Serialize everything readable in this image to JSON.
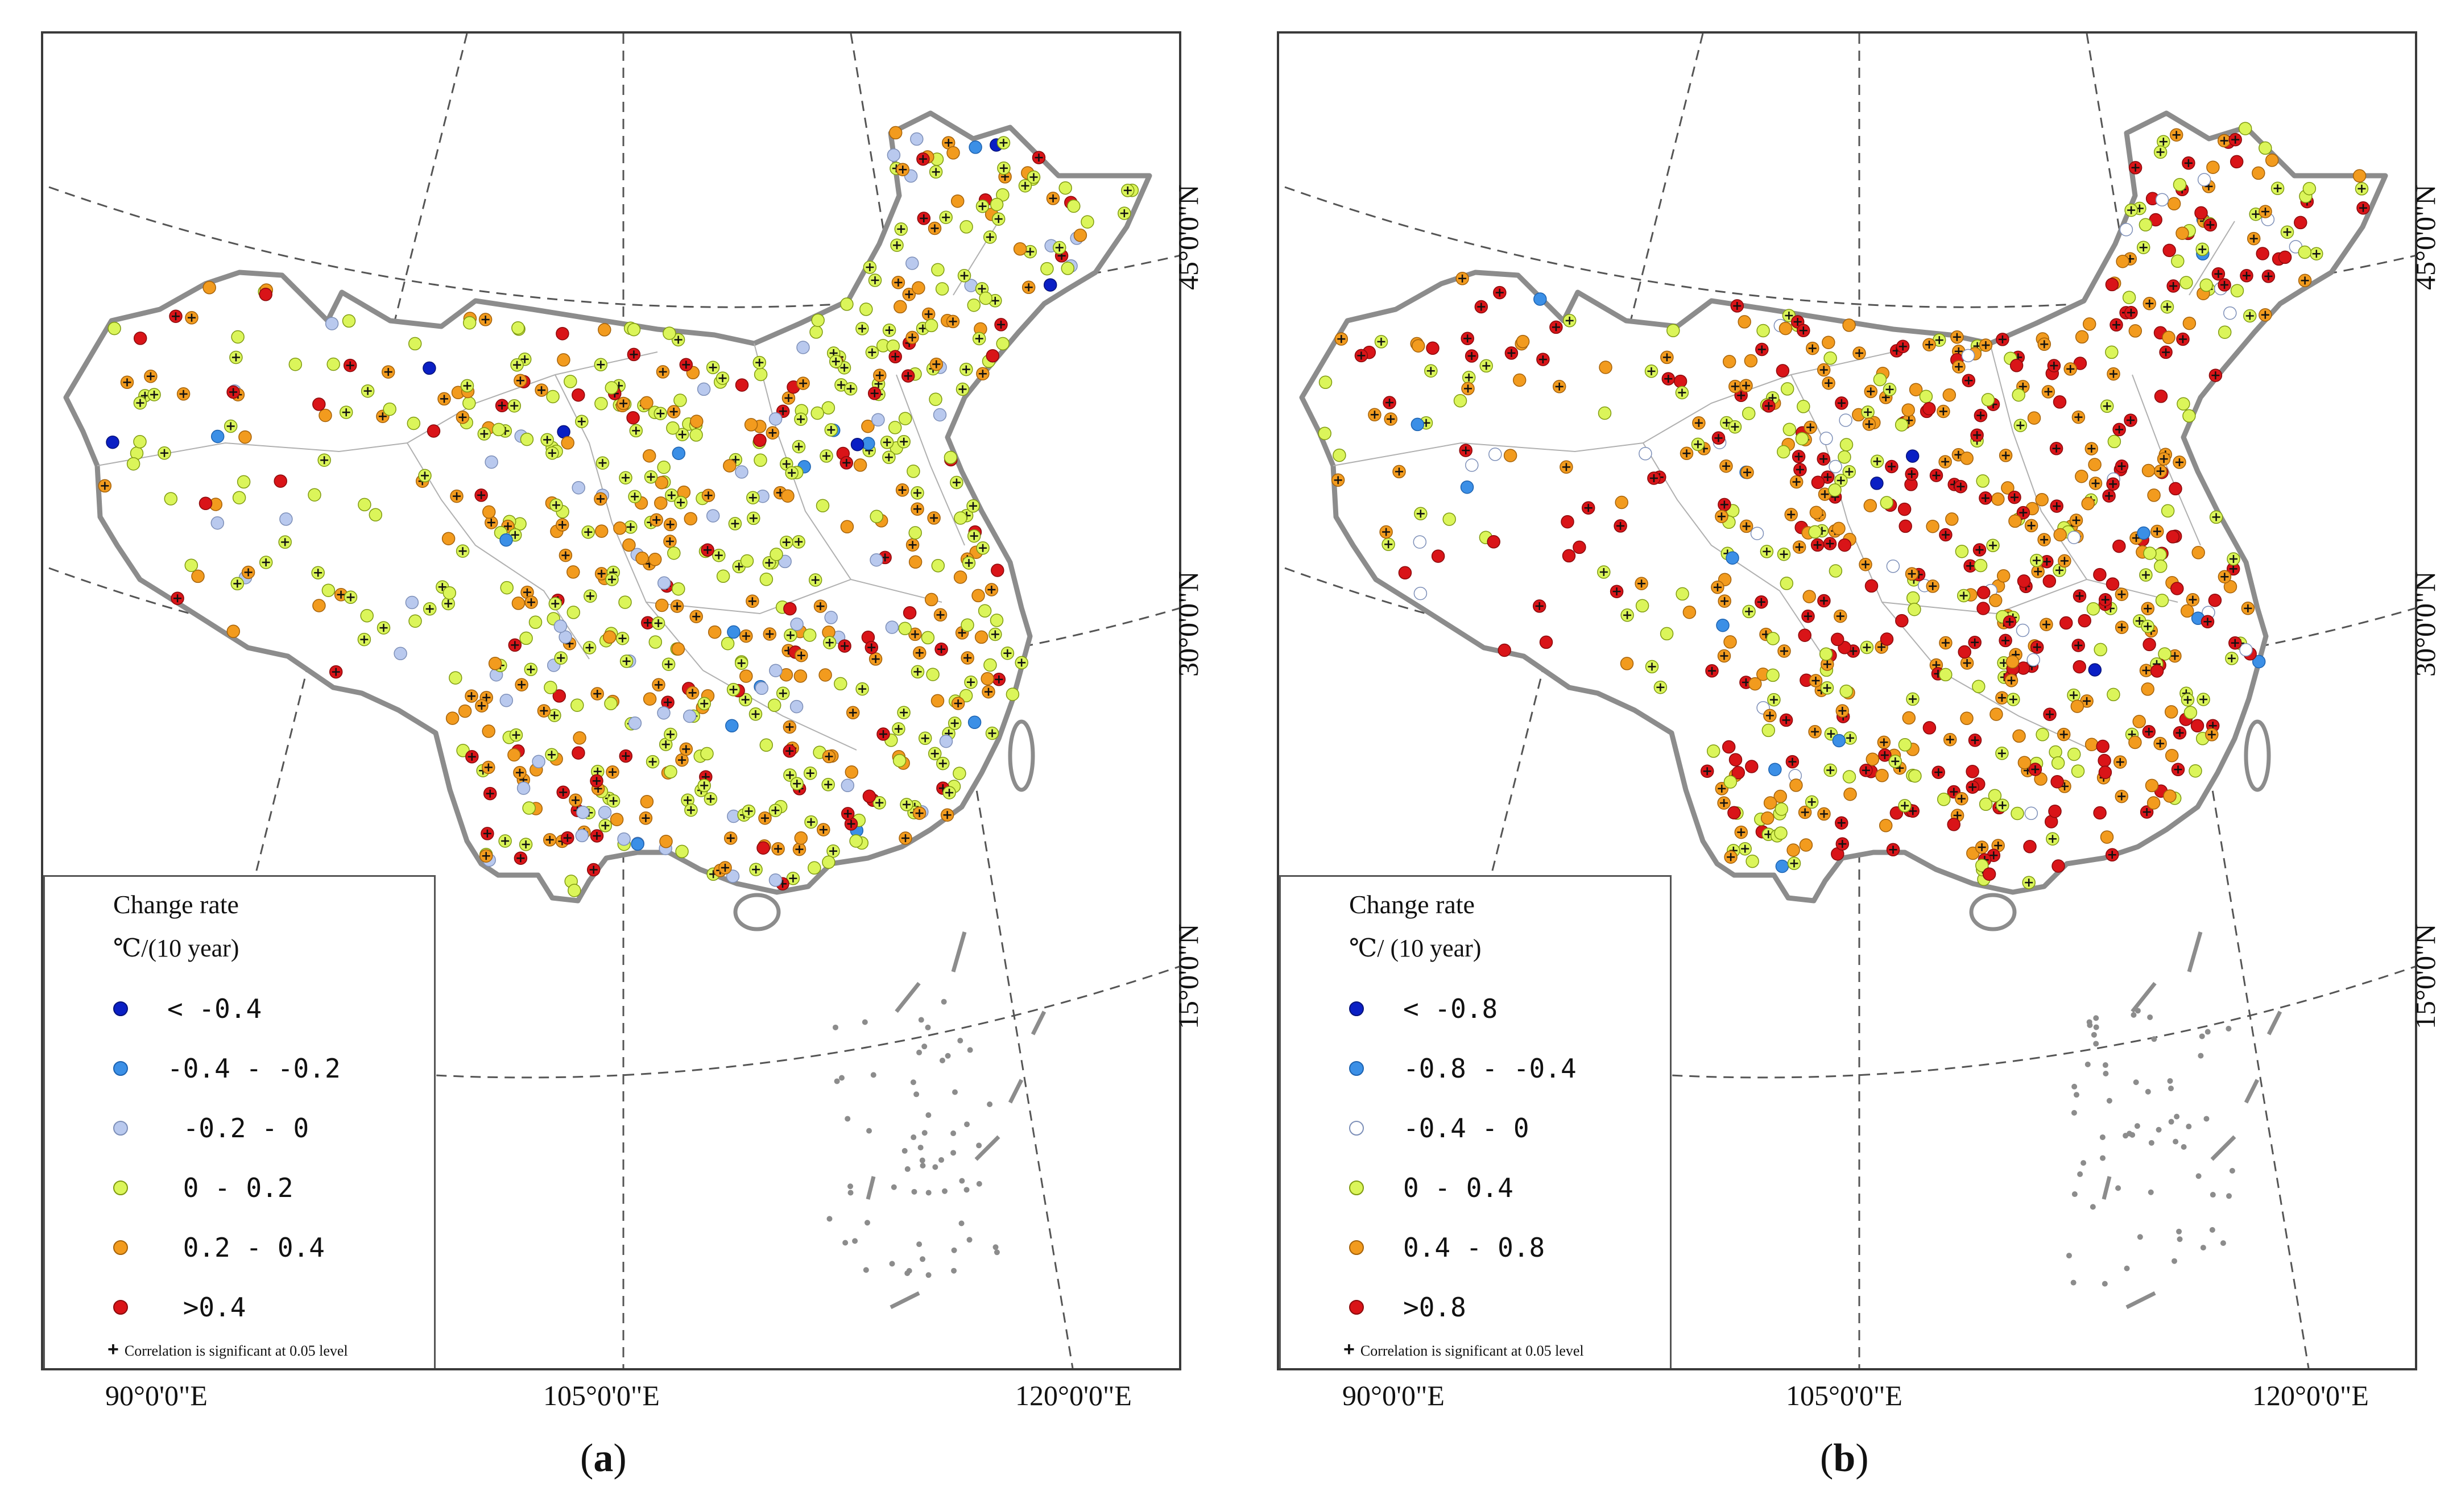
{
  "panels": [
    {
      "id": "a",
      "caption_letter": "a",
      "legend": {
        "title": "Change rate",
        "unit": "℃/(10 year)",
        "items": [
          {
            "label": "< -0.4",
            "color": "#0a1fc4"
          },
          {
            "label": "-0.4 - -0.2",
            "color": "#3b8fe6"
          },
          {
            "label": " -0.2 - 0",
            "color": "#b9c9ee"
          },
          {
            "label": " 0 - 0.2",
            "color": "#dbf55a"
          },
          {
            "label": " 0.2 - 0.4",
            "color": "#f29b1e"
          },
          {
            "label": " >0.4",
            "color": "#d91418"
          }
        ],
        "note": "Correlation is significant at 0.05 level",
        "note_symbol": "+"
      },
      "lon_labels": [
        "90°0'0\"E",
        "105°0'0\"E",
        "120°0'0\"E"
      ],
      "lat_labels": [
        "45°0'0\"N",
        "30°0'0\"N",
        "15°0'0\"N"
      ],
      "station_mix": {
        "class_0": 0.004,
        "class_1": 0.02,
        "class_2": 0.09,
        "class_3": 0.46,
        "class_4": 0.3,
        "class_5": 0.126
      }
    },
    {
      "id": "b",
      "caption_letter": "b",
      "legend": {
        "title": "Change rate",
        "unit": "℃/ (10 year)",
        "items": [
          {
            "label": "< -0.8",
            "color": "#0a1fc4"
          },
          {
            "label": "-0.8 - -0.4",
            "color": "#3b8fe6"
          },
          {
            "label": "-0.4 - 0",
            "color": "#ffffff"
          },
          {
            "label": "0 - 0.4",
            "color": "#dbf55a"
          },
          {
            "label": "0.4 - 0.8",
            "color": "#f29b1e"
          },
          {
            "label": ">0.8",
            "color": "#d91418"
          }
        ],
        "note": "Correlation is significant at 0.05 level",
        "note_symbol": "+"
      },
      "lon_labels": [
        "90°0'0\"E",
        "105°0'0\"E",
        "120°0'0\"E"
      ],
      "lat_labels": [
        "45°0'0\"N",
        "30°0'0\"N",
        "15°0'0\"N"
      ],
      "station_mix": {
        "class_0": 0.004,
        "class_1": 0.016,
        "class_2": 0.04,
        "class_3": 0.3,
        "class_4": 0.33,
        "class_5": 0.31
      }
    }
  ],
  "colors": {
    "boundary": "#8c8c8c",
    "graticule": "#555555",
    "province": "#b0b0b0"
  }
}
